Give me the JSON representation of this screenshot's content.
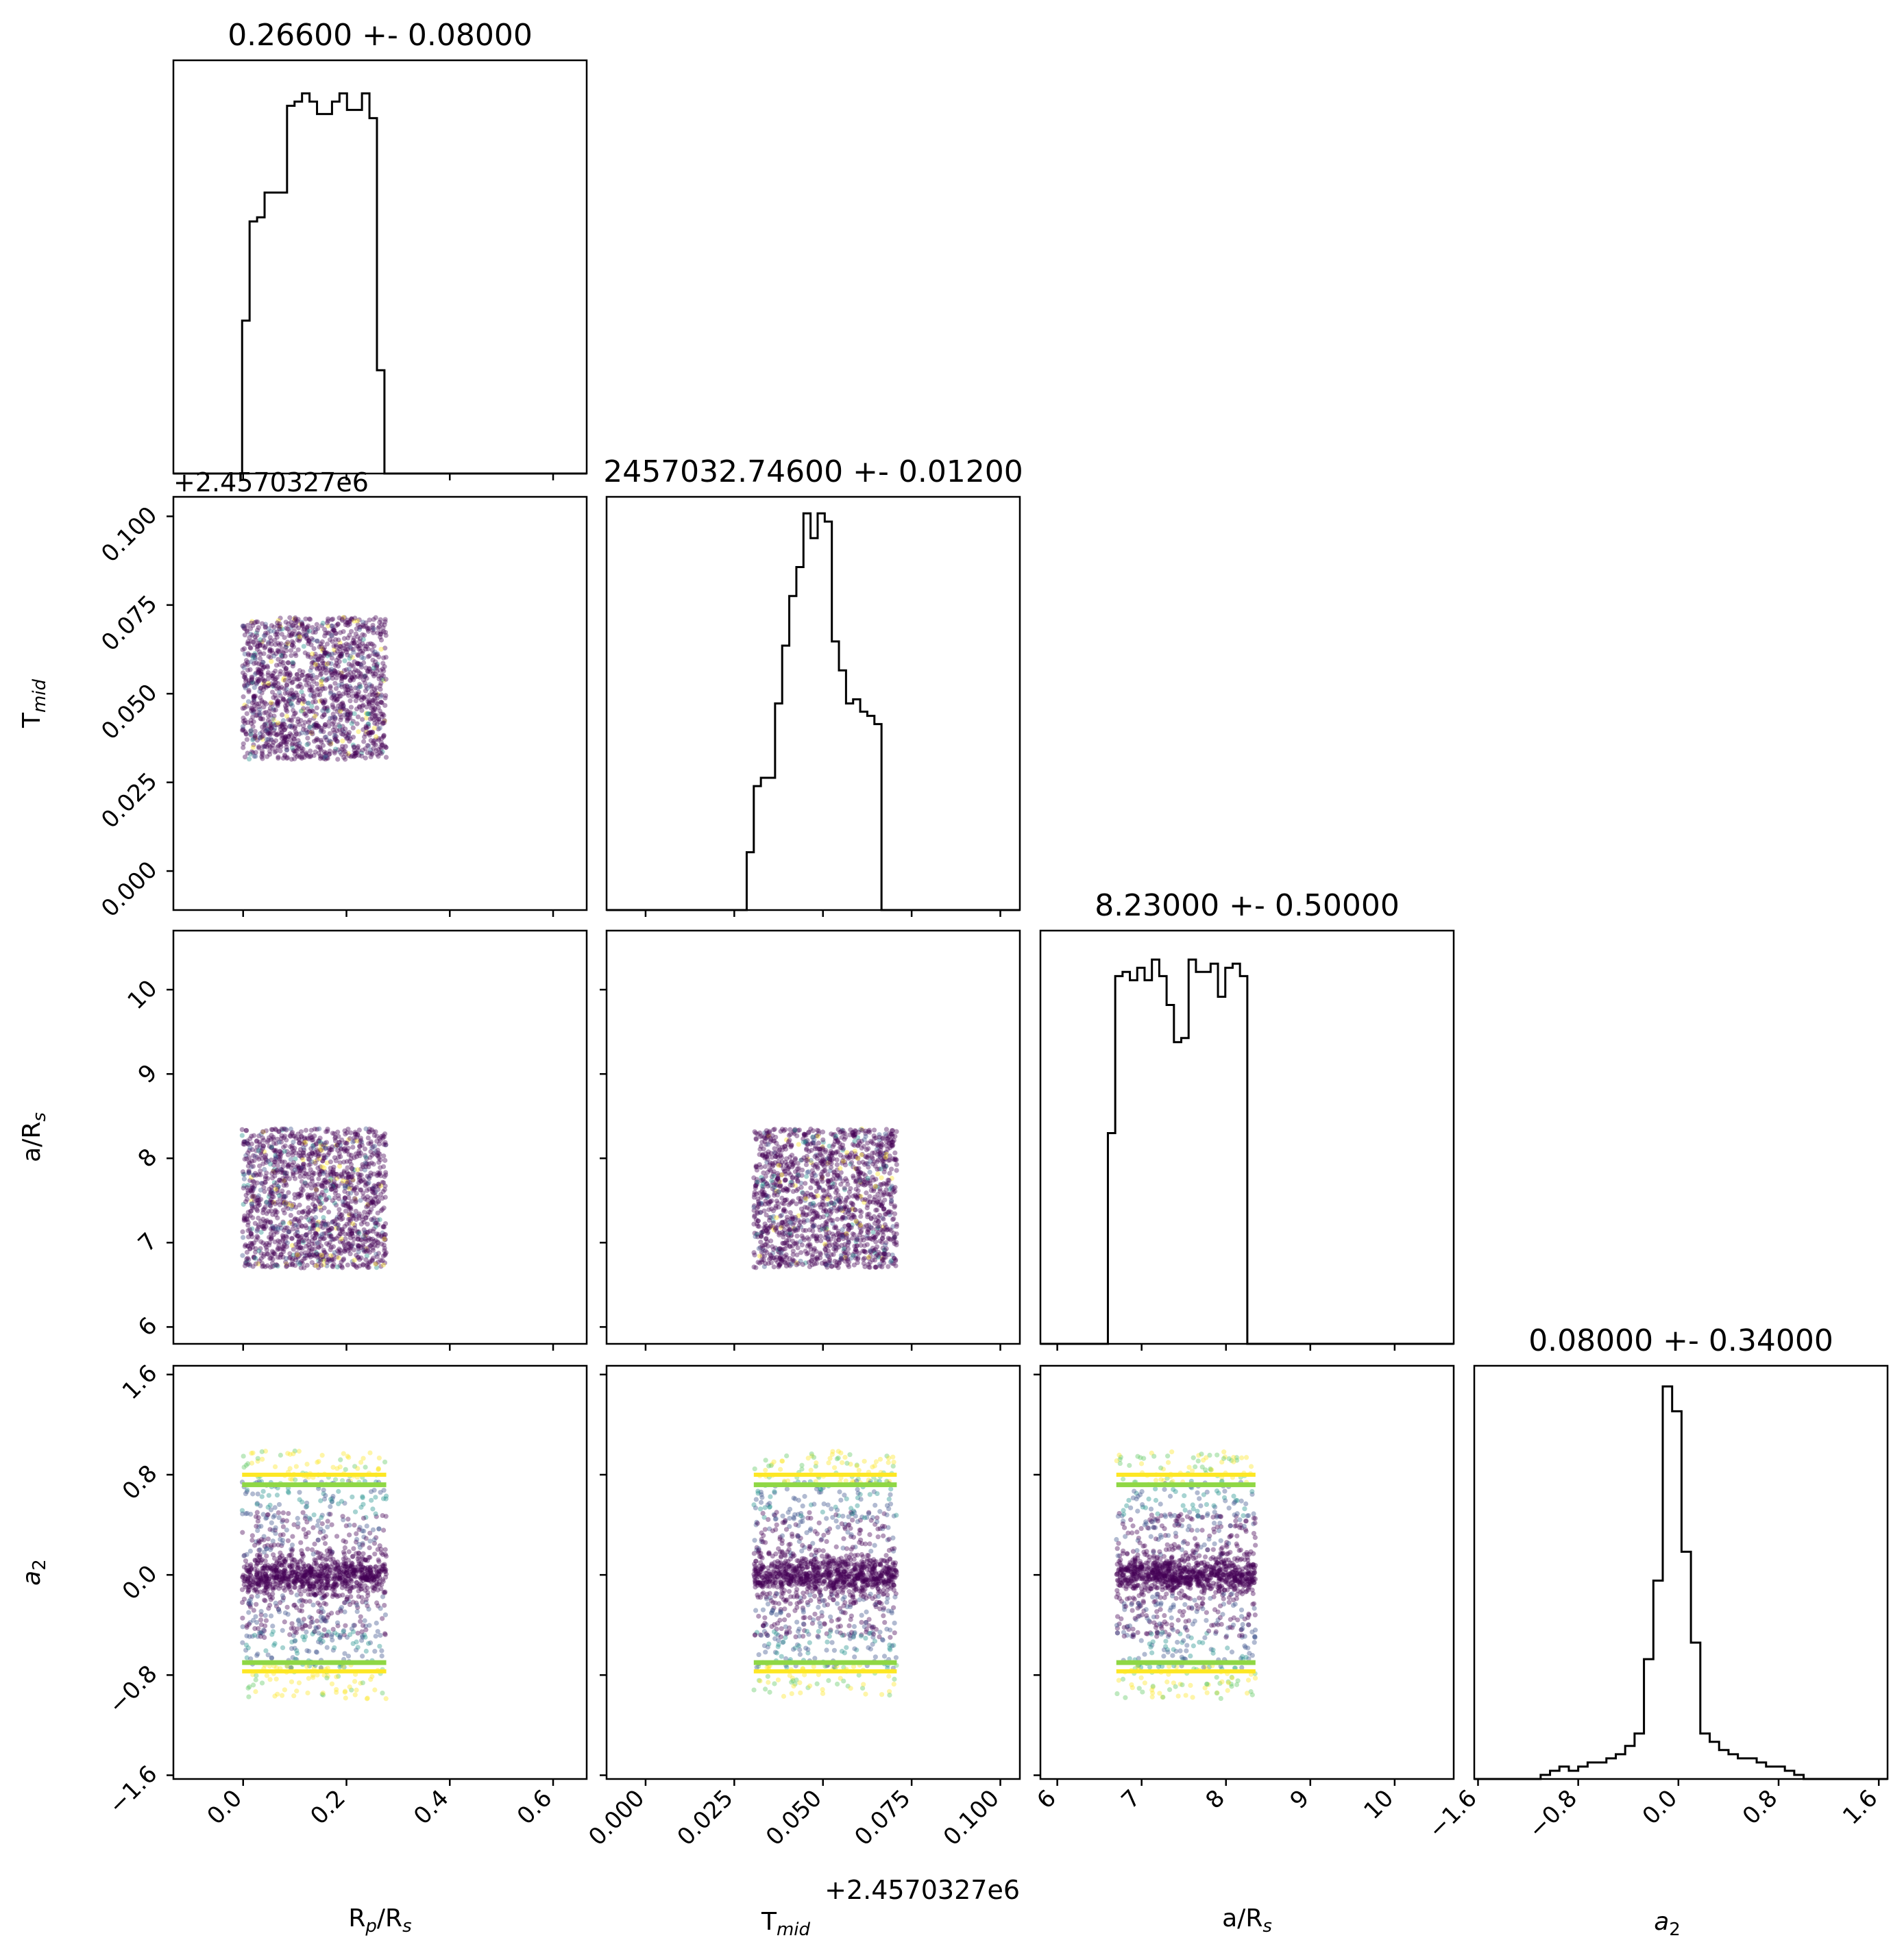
{
  "chart_data": {
    "type": "corner",
    "parameters": [
      {
        "key": "rp",
        "label": "R_p/R_s",
        "range": [
          -0.135,
          0.665
        ],
        "ticks": [
          0.0,
          0.2,
          0.4,
          0.6
        ],
        "tick_labels": [
          "0.0",
          "0.2",
          "0.4",
          "0.6"
        ],
        "tick_rotate": true
      },
      {
        "key": "tmid",
        "label": "T_mid",
        "range": [
          -0.011,
          0.1055
        ],
        "ticks": [
          0.0,
          0.025,
          0.05,
          0.075,
          0.1
        ],
        "tick_labels": [
          "0.000",
          "0.025",
          "0.050",
          "0.075",
          "0.100"
        ],
        "offset_text": "+2.4570327e6",
        "tick_rotate": true
      },
      {
        "key": "ars",
        "label": "a/R_s",
        "range": [
          5.8,
          10.7
        ],
        "ticks": [
          6,
          7,
          8,
          9,
          10
        ],
        "tick_labels": [
          "6",
          "7",
          "8",
          "9",
          "10"
        ],
        "tick_rotate": true
      },
      {
        "key": "a2",
        "label": "a_2",
        "range": [
          -1.63,
          1.67
        ],
        "ticks": [
          -1.6,
          -0.8,
          0.0,
          0.8,
          1.6
        ],
        "tick_labels": [
          "−1.6",
          "−0.8",
          "0.0",
          "0.8",
          "1.6"
        ],
        "tick_rotate": true
      }
    ],
    "diagonal_titles": [
      "0.26600 +- 0.08000",
      "2457032.74600 +- 0.01200",
      "8.23000 +- 0.50000",
      "0.08000 +- 0.34000"
    ],
    "histograms": [
      {
        "edges_start": -0.002,
        "bin_width": 0.0145,
        "counts": [
          0.37,
          0.61,
          0.62,
          0.68,
          0.68,
          0.68,
          0.89,
          0.9,
          0.92,
          0.9,
          0.87,
          0.87,
          0.9,
          0.92,
          0.88,
          0.88,
          0.92,
          0.86,
          0.25,
          0.0
        ]
      },
      {
        "edges_start": 0.0285,
        "bin_width": 0.002,
        "counts": [
          0.14,
          0.3,
          0.32,
          0.32,
          0.5,
          0.64,
          0.76,
          0.83,
          0.96,
          0.9,
          0.96,
          0.94,
          0.65,
          0.58,
          0.5,
          0.51,
          0.48,
          0.47,
          0.45,
          0.0
        ]
      },
      {
        "edges_start": 6.6,
        "bin_width": 0.087,
        "counts": [
          0.51,
          0.89,
          0.9,
          0.88,
          0.91,
          0.88,
          0.93,
          0.89,
          0.82,
          0.73,
          0.74,
          0.93,
          0.9,
          0.9,
          0.92,
          0.84,
          0.91,
          0.92,
          0.89,
          0.0
        ]
      },
      {
        "edges_start": -1.1,
        "bin_width": 0.075,
        "counts": [
          0.01,
          0.02,
          0.03,
          0.02,
          0.03,
          0.04,
          0.04,
          0.05,
          0.06,
          0.08,
          0.11,
          0.29,
          0.48,
          0.95,
          0.89,
          0.55,
          0.33,
          0.11,
          0.09,
          0.07,
          0.06,
          0.05,
          0.05,
          0.04,
          0.03,
          0.03,
          0.02,
          0.01,
          0.0,
          0.0
        ]
      }
    ],
    "scatter_colormap": [
      "#440154",
      "#3b528b",
      "#21918c",
      "#5ec962",
      "#fde725"
    ],
    "contour_colors": [
      "#8fd744",
      "#fde725"
    ],
    "contour_levels_a2": [
      0.72,
      -0.7
    ],
    "grid": false,
    "legend": "none"
  }
}
